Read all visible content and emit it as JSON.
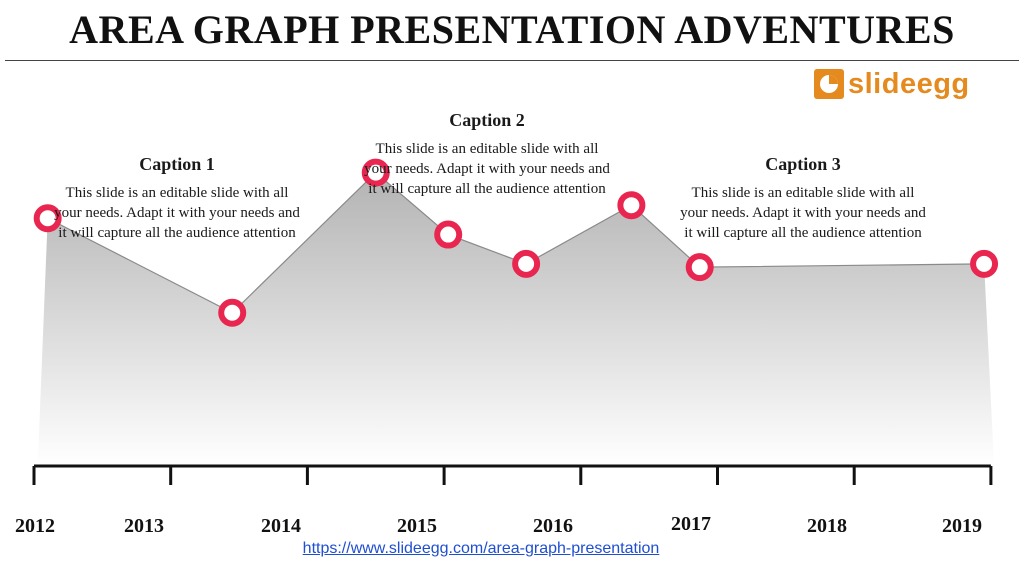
{
  "slide": {
    "title": "AREA GRAPH PRESENTATION ADVENTURES",
    "logo_text": "slideegg",
    "url": "https://www.slideegg.com/area-graph-presentation"
  },
  "captions": [
    {
      "heading": "Caption 1",
      "body": "This slide is an editable slide with all your needs. Adapt it with your needs and it will capture all the audience attention"
    },
    {
      "heading": "Caption 2",
      "body": "This slide is an editable slide with all your needs. Adapt it with your needs and it will capture all the audience attention"
    },
    {
      "heading": "Caption 3",
      "body": "This slide is an editable slide with all your needs. Adapt it with your needs and it will capture all the audience attention"
    }
  ],
  "colors": {
    "marker": "#e8264f",
    "logo": "#e58a1f",
    "link": "#1f4fd1"
  },
  "chart_data": {
    "type": "area",
    "x_labels": [
      "2012",
      "2013",
      "2014",
      "2015",
      "2016",
      "2017",
      "2018",
      "2019"
    ],
    "points": [
      {
        "x": 2012.1,
        "y": 76
      },
      {
        "x": 2013.45,
        "y": 47
      },
      {
        "x": 2014.5,
        "y": 90
      },
      {
        "x": 2015.03,
        "y": 71
      },
      {
        "x": 2015.6,
        "y": 62
      },
      {
        "x": 2016.37,
        "y": 80
      },
      {
        "x": 2016.87,
        "y": 61
      },
      {
        "x": 2018.95,
        "y": 62
      }
    ],
    "ylim": [
      0,
      100
    ],
    "grid": false
  }
}
